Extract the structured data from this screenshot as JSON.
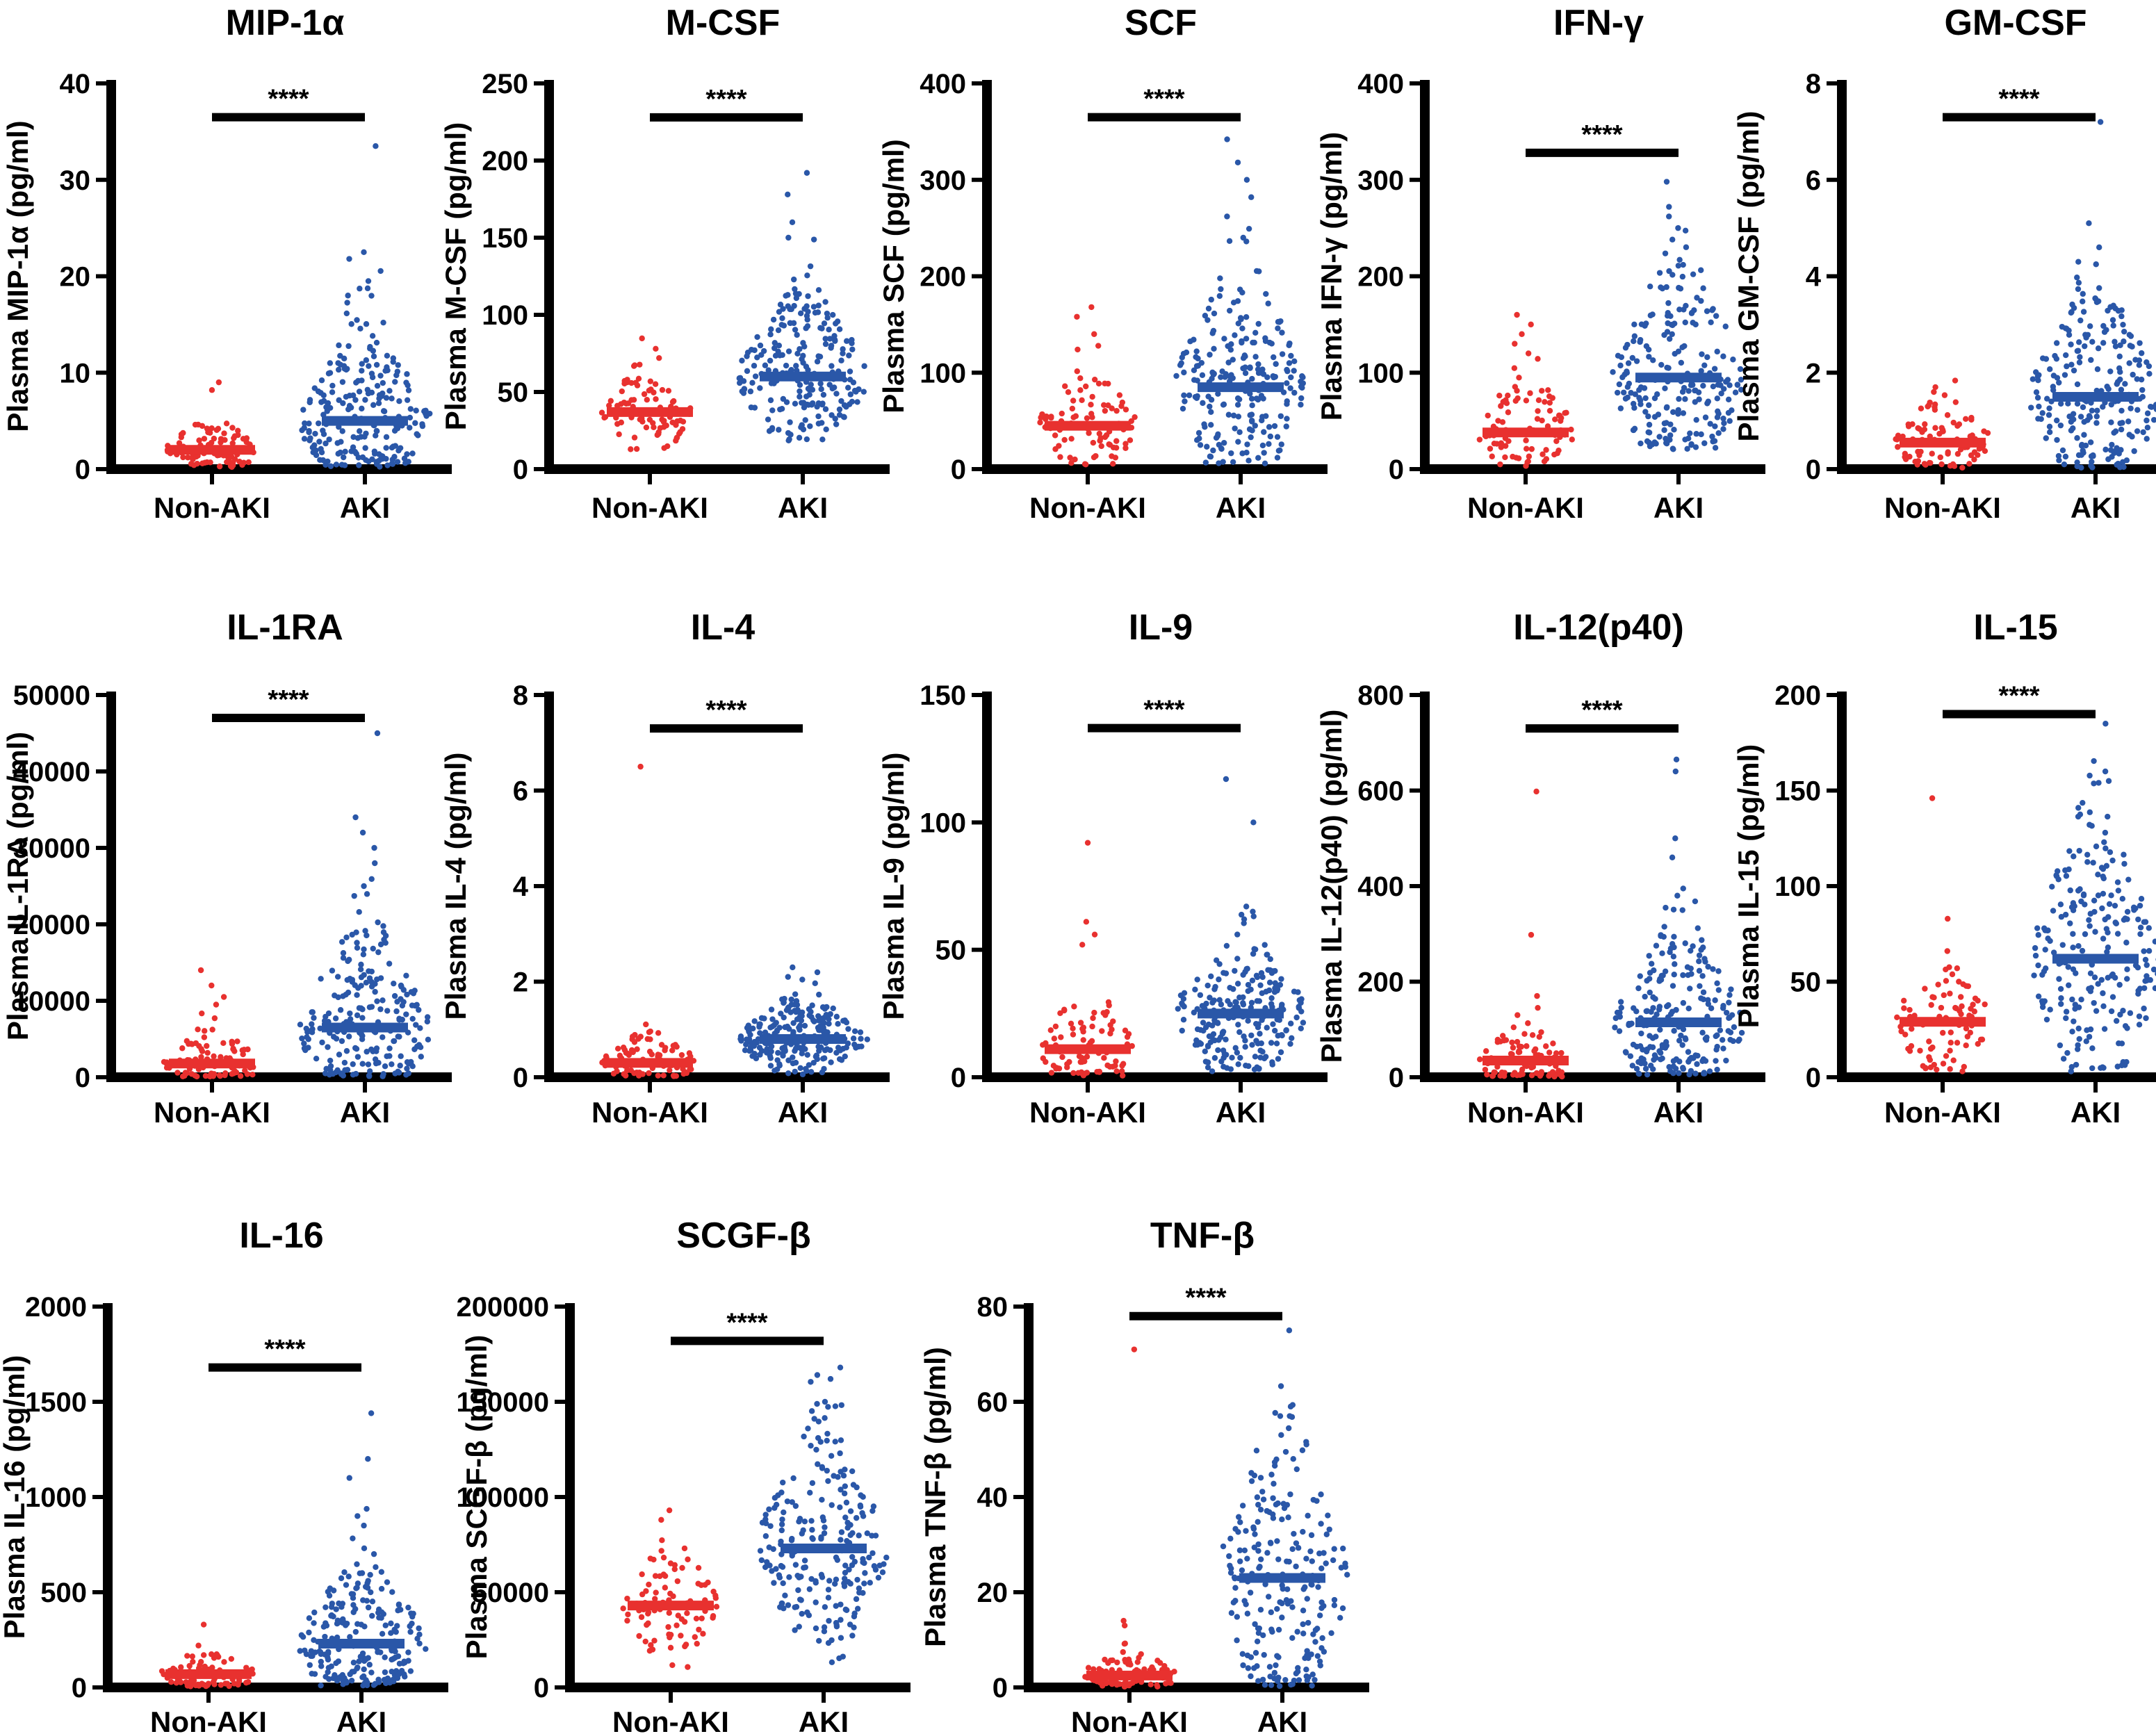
{
  "colors": {
    "non_aki": "#e8312f",
    "aki": "#2a57a8",
    "axis": "#000000"
  },
  "chart_data": [
    {
      "type": "scatter",
      "title": "MIP-1α",
      "ylabel": "Plasma MIP-1α (pg/ml)",
      "ylim": [
        0,
        40
      ],
      "yticks": [
        0,
        10,
        20,
        30,
        40
      ],
      "ytick_labels": [
        "0",
        "10",
        "20",
        "30",
        "40"
      ],
      "categories": [
        "Non-AKI",
        "AKI"
      ],
      "significance": "****",
      "sig_y": 36.5,
      "series": [
        {
          "name": "Non-AKI",
          "median": 2.0,
          "q1": 1.2,
          "q3": 3.2,
          "min": 0.2,
          "max": 9.0,
          "n": 90,
          "outliers": [
            9.0,
            8.2
          ]
        },
        {
          "name": "AKI",
          "median": 5.0,
          "q1": 2.5,
          "q3": 8.5,
          "min": 0.2,
          "max": 33.5,
          "n": 230,
          "outliers": [
            33.5,
            22.5,
            21.8,
            19.5,
            18.0
          ]
        }
      ]
    },
    {
      "type": "scatter",
      "title": "M-CSF",
      "ylabel": "Plasma M-CSF (pg/ml)",
      "ylim": [
        0,
        250
      ],
      "yticks": [
        0,
        50,
        100,
        150,
        200,
        250
      ],
      "ytick_labels": [
        "0",
        "50",
        "100",
        "150",
        "200",
        "250"
      ],
      "categories": [
        "Non-AKI",
        "AKI"
      ],
      "significance": "****",
      "sig_y": 228,
      "series": [
        {
          "name": "Non-AKI",
          "median": 37,
          "q1": 28,
          "q3": 47,
          "min": 12,
          "max": 78,
          "n": 90,
          "outliers": [
            78,
            72
          ]
        },
        {
          "name": "AKI",
          "median": 60,
          "q1": 45,
          "q3": 80,
          "min": 15,
          "max": 192,
          "n": 230,
          "outliers": [
            192,
            178,
            160,
            150
          ]
        }
      ]
    },
    {
      "type": "scatter",
      "title": "SCF",
      "ylabel": "Plasma SCF (pg/ml)",
      "ylim": [
        0,
        400
      ],
      "yticks": [
        0,
        100,
        200,
        300,
        400
      ],
      "ytick_labels": [
        "0",
        "100",
        "200",
        "300",
        "400"
      ],
      "categories": [
        "Non-AKI",
        "AKI"
      ],
      "significance": "****",
      "sig_y": 365,
      "series": [
        {
          "name": "Non-AKI",
          "median": 45,
          "q1": 25,
          "q3": 65,
          "min": 3,
          "max": 168,
          "n": 90,
          "outliers": [
            168,
            158,
            140
          ]
        },
        {
          "name": "AKI",
          "median": 85,
          "q1": 50,
          "q3": 125,
          "min": 5,
          "max": 342,
          "n": 230,
          "outliers": [
            342,
            318,
            300,
            282,
            262,
            240
          ]
        }
      ]
    },
    {
      "type": "scatter",
      "title": "IFN-γ",
      "ylabel": "Plasma IFN-γ (pg/ml)",
      "ylim": [
        0,
        400
      ],
      "yticks": [
        0,
        100,
        200,
        300,
        400
      ],
      "ytick_labels": [
        "0",
        "100",
        "200",
        "300",
        "400"
      ],
      "categories": [
        "Non-AKI",
        "AKI"
      ],
      "significance": "****",
      "sig_y": 328,
      "series": [
        {
          "name": "Non-AKI",
          "median": 38,
          "q1": 20,
          "q3": 60,
          "min": 3,
          "max": 160,
          "n": 90,
          "outliers": [
            160,
            150,
            140,
            130,
            120
          ]
        },
        {
          "name": "AKI",
          "median": 95,
          "q1": 60,
          "q3": 140,
          "min": 20,
          "max": 298,
          "n": 230,
          "outliers": [
            298,
            272,
            262,
            250
          ]
        }
      ]
    },
    {
      "type": "scatter",
      "title": "GM-CSF",
      "ylabel": "Plasma GM-CSF (pg/ml)",
      "ylim": [
        0,
        8
      ],
      "yticks": [
        0,
        2,
        4,
        6,
        8
      ],
      "ytick_labels": [
        "0",
        "2",
        "4",
        "6",
        "8"
      ],
      "categories": [
        "Non-AKI",
        "AKI"
      ],
      "significance": "****",
      "sig_y": 7.3,
      "series": [
        {
          "name": "Non-AKI",
          "median": 0.55,
          "q1": 0.3,
          "q3": 0.9,
          "min": 0.02,
          "max": 1.7,
          "n": 90,
          "outliers": [
            1.7,
            1.6
          ]
        },
        {
          "name": "AKI",
          "median": 1.5,
          "q1": 0.9,
          "q3": 2.3,
          "min": 0.02,
          "max": 7.2,
          "n": 230,
          "outliers": [
            7.2,
            5.1,
            4.6,
            4.3
          ]
        }
      ]
    },
    {
      "type": "scatter",
      "title": "IL-1RA",
      "ylabel": "Plasma IL-1RA (pg/ml)",
      "ylim": [
        0,
        50000
      ],
      "yticks": [
        0,
        10000,
        20000,
        30000,
        40000,
        50000
      ],
      "ytick_labels": [
        "0",
        "10000",
        "20000",
        "30000",
        "40000",
        "50000"
      ],
      "categories": [
        "Non-AKI",
        "AKI"
      ],
      "significance": "****",
      "sig_y": 47000,
      "series": [
        {
          "name": "Non-AKI",
          "median": 1800,
          "q1": 700,
          "q3": 3500,
          "min": 50,
          "max": 14000,
          "n": 90,
          "outliers": [
            14000,
            12000,
            10500,
            9500
          ]
        },
        {
          "name": "AKI",
          "median": 6500,
          "q1": 3000,
          "q3": 11000,
          "min": 100,
          "max": 45000,
          "n": 230,
          "outliers": [
            45000,
            34000,
            32000,
            30000,
            28000,
            25000
          ]
        }
      ]
    },
    {
      "type": "scatter",
      "title": "IL-4",
      "ylabel": "Plasma IL-4 (pg/ml)",
      "ylim": [
        0,
        8
      ],
      "yticks": [
        0,
        2,
        4,
        6,
        8
      ],
      "ytick_labels": [
        "0",
        "2",
        "4",
        "6",
        "8"
      ],
      "categories": [
        "Non-AKI",
        "AKI"
      ],
      "significance": "****",
      "sig_y": 7.3,
      "series": [
        {
          "name": "Non-AKI",
          "median": 0.3,
          "q1": 0.12,
          "q3": 0.5,
          "min": 0.01,
          "max": 6.5,
          "n": 90,
          "outliers": [
            6.5,
            0.85
          ]
        },
        {
          "name": "AKI",
          "median": 0.8,
          "q1": 0.55,
          "q3": 1.1,
          "min": 0.05,
          "max": 2.3,
          "n": 230,
          "outliers": [
            2.3,
            2.1
          ]
        }
      ]
    },
    {
      "type": "scatter",
      "title": "IL-9",
      "ylabel": "Plasma IL-9 (pg/ml)",
      "ylim": [
        0,
        150
      ],
      "yticks": [
        0,
        50,
        100,
        150
      ],
      "ytick_labels": [
        "0",
        "50",
        "100",
        "150"
      ],
      "categories": [
        "Non-AKI",
        "AKI"
      ],
      "significance": "****",
      "sig_y": 137,
      "series": [
        {
          "name": "Non-AKI",
          "median": 11,
          "q1": 5,
          "q3": 20,
          "min": 0.5,
          "max": 92,
          "n": 90,
          "outliers": [
            92,
            61,
            56,
            52
          ]
        },
        {
          "name": "AKI",
          "median": 25,
          "q1": 16,
          "q3": 35,
          "min": 2,
          "max": 117,
          "n": 230,
          "outliers": [
            117,
            100,
            65,
            62
          ]
        }
      ]
    },
    {
      "type": "scatter",
      "title": "IL-12(p40)",
      "ylabel": "Plasma IL-12(p40) (pg/ml)",
      "ylim": [
        0,
        800
      ],
      "yticks": [
        0,
        200,
        400,
        600,
        800
      ],
      "ytick_labels": [
        "0",
        "200",
        "400",
        "600",
        "800"
      ],
      "categories": [
        "Non-AKI",
        "AKI"
      ],
      "significance": "****",
      "sig_y": 730,
      "series": [
        {
          "name": "Non-AKI",
          "median": 35,
          "q1": 10,
          "q3": 60,
          "min": 1,
          "max": 598,
          "n": 90,
          "outliers": [
            598,
            298,
            170,
            130
          ]
        },
        {
          "name": "AKI",
          "median": 115,
          "q1": 60,
          "q3": 180,
          "min": 5,
          "max": 665,
          "n": 230,
          "outliers": [
            665,
            640,
            500,
            460,
            380
          ]
        }
      ]
    },
    {
      "type": "scatter",
      "title": "IL-15",
      "ylabel": "Plasma IL-15 (pg/ml)",
      "ylim": [
        0,
        200
      ],
      "yticks": [
        0,
        50,
        100,
        150,
        200
      ],
      "ytick_labels": [
        "0",
        "50",
        "100",
        "150",
        "200"
      ],
      "categories": [
        "Non-AKI",
        "AKI"
      ],
      "significance": "****",
      "sig_y": 190,
      "series": [
        {
          "name": "Non-AKI",
          "median": 29,
          "q1": 20,
          "q3": 40,
          "min": 2,
          "max": 146,
          "n": 90,
          "outliers": [
            146,
            66
          ]
        },
        {
          "name": "AKI",
          "median": 62,
          "q1": 40,
          "q3": 88,
          "min": 2,
          "max": 190,
          "n": 230,
          "outliers": [
            190,
            185,
            160,
            155
          ]
        }
      ]
    },
    {
      "type": "scatter",
      "title": "IL-16",
      "ylabel": "Plasma IL-16 (pg/ml)",
      "ylim": [
        0,
        2000
      ],
      "yticks": [
        0,
        500,
        1000,
        1500,
        2000
      ],
      "ytick_labels": [
        "0",
        "500",
        "1000",
        "1500",
        "2000"
      ],
      "categories": [
        "Non-AKI",
        "AKI"
      ],
      "significance": "****",
      "sig_y": 1680,
      "series": [
        {
          "name": "Non-AKI",
          "median": 70,
          "q1": 30,
          "q3": 110,
          "min": 5,
          "max": 330,
          "n": 90,
          "outliers": [
            330,
            220
          ]
        },
        {
          "name": "AKI",
          "median": 230,
          "q1": 120,
          "q3": 380,
          "min": 10,
          "max": 1440,
          "n": 230,
          "outliers": [
            1440,
            1200,
            1100,
            900,
            850
          ]
        }
      ]
    },
    {
      "type": "scatter",
      "title": "SCGF-β",
      "ylabel": "Plasma SCGF-β (pg/ml)",
      "ylim": [
        0,
        200000
      ],
      "yticks": [
        0,
        50000,
        100000,
        150000,
        200000
      ],
      "ytick_labels": [
        "0",
        "50000",
        "100000",
        "150000",
        "200000"
      ],
      "categories": [
        "Non-AKI",
        "AKI"
      ],
      "significance": "****",
      "sig_y": 182000,
      "series": [
        {
          "name": "Non-AKI",
          "median": 43000,
          "q1": 33000,
          "q3": 55000,
          "min": 8000,
          "max": 93000,
          "n": 90,
          "outliers": [
            93000,
            88000
          ]
        },
        {
          "name": "AKI",
          "median": 73000,
          "q1": 55000,
          "q3": 95000,
          "min": 2000,
          "max": 168000,
          "n": 230,
          "outliers": [
            168000,
            162000,
            150000
          ]
        }
      ]
    },
    {
      "type": "scatter",
      "title": "TNF-β",
      "ylabel": "Plasma TNF-β (pg/ml)",
      "ylim": [
        0,
        80
      ],
      "yticks": [
        0,
        20,
        40,
        60,
        80
      ],
      "ytick_labels": [
        "0",
        "20",
        "40",
        "60",
        "80"
      ],
      "categories": [
        "Non-AKI",
        "AKI"
      ],
      "significance": "****",
      "sig_y": 78,
      "series": [
        {
          "name": "Non-AKI",
          "median": 2.5,
          "q1": 1.0,
          "q3": 4.5,
          "min": 0.1,
          "max": 71,
          "n": 90,
          "outliers": [
            71,
            14,
            13
          ]
        },
        {
          "name": "AKI",
          "median": 23,
          "q1": 12,
          "q3": 32,
          "min": 0.2,
          "max": 75,
          "n": 230,
          "outliers": [
            75,
            59,
            57,
            48
          ]
        }
      ]
    }
  ]
}
